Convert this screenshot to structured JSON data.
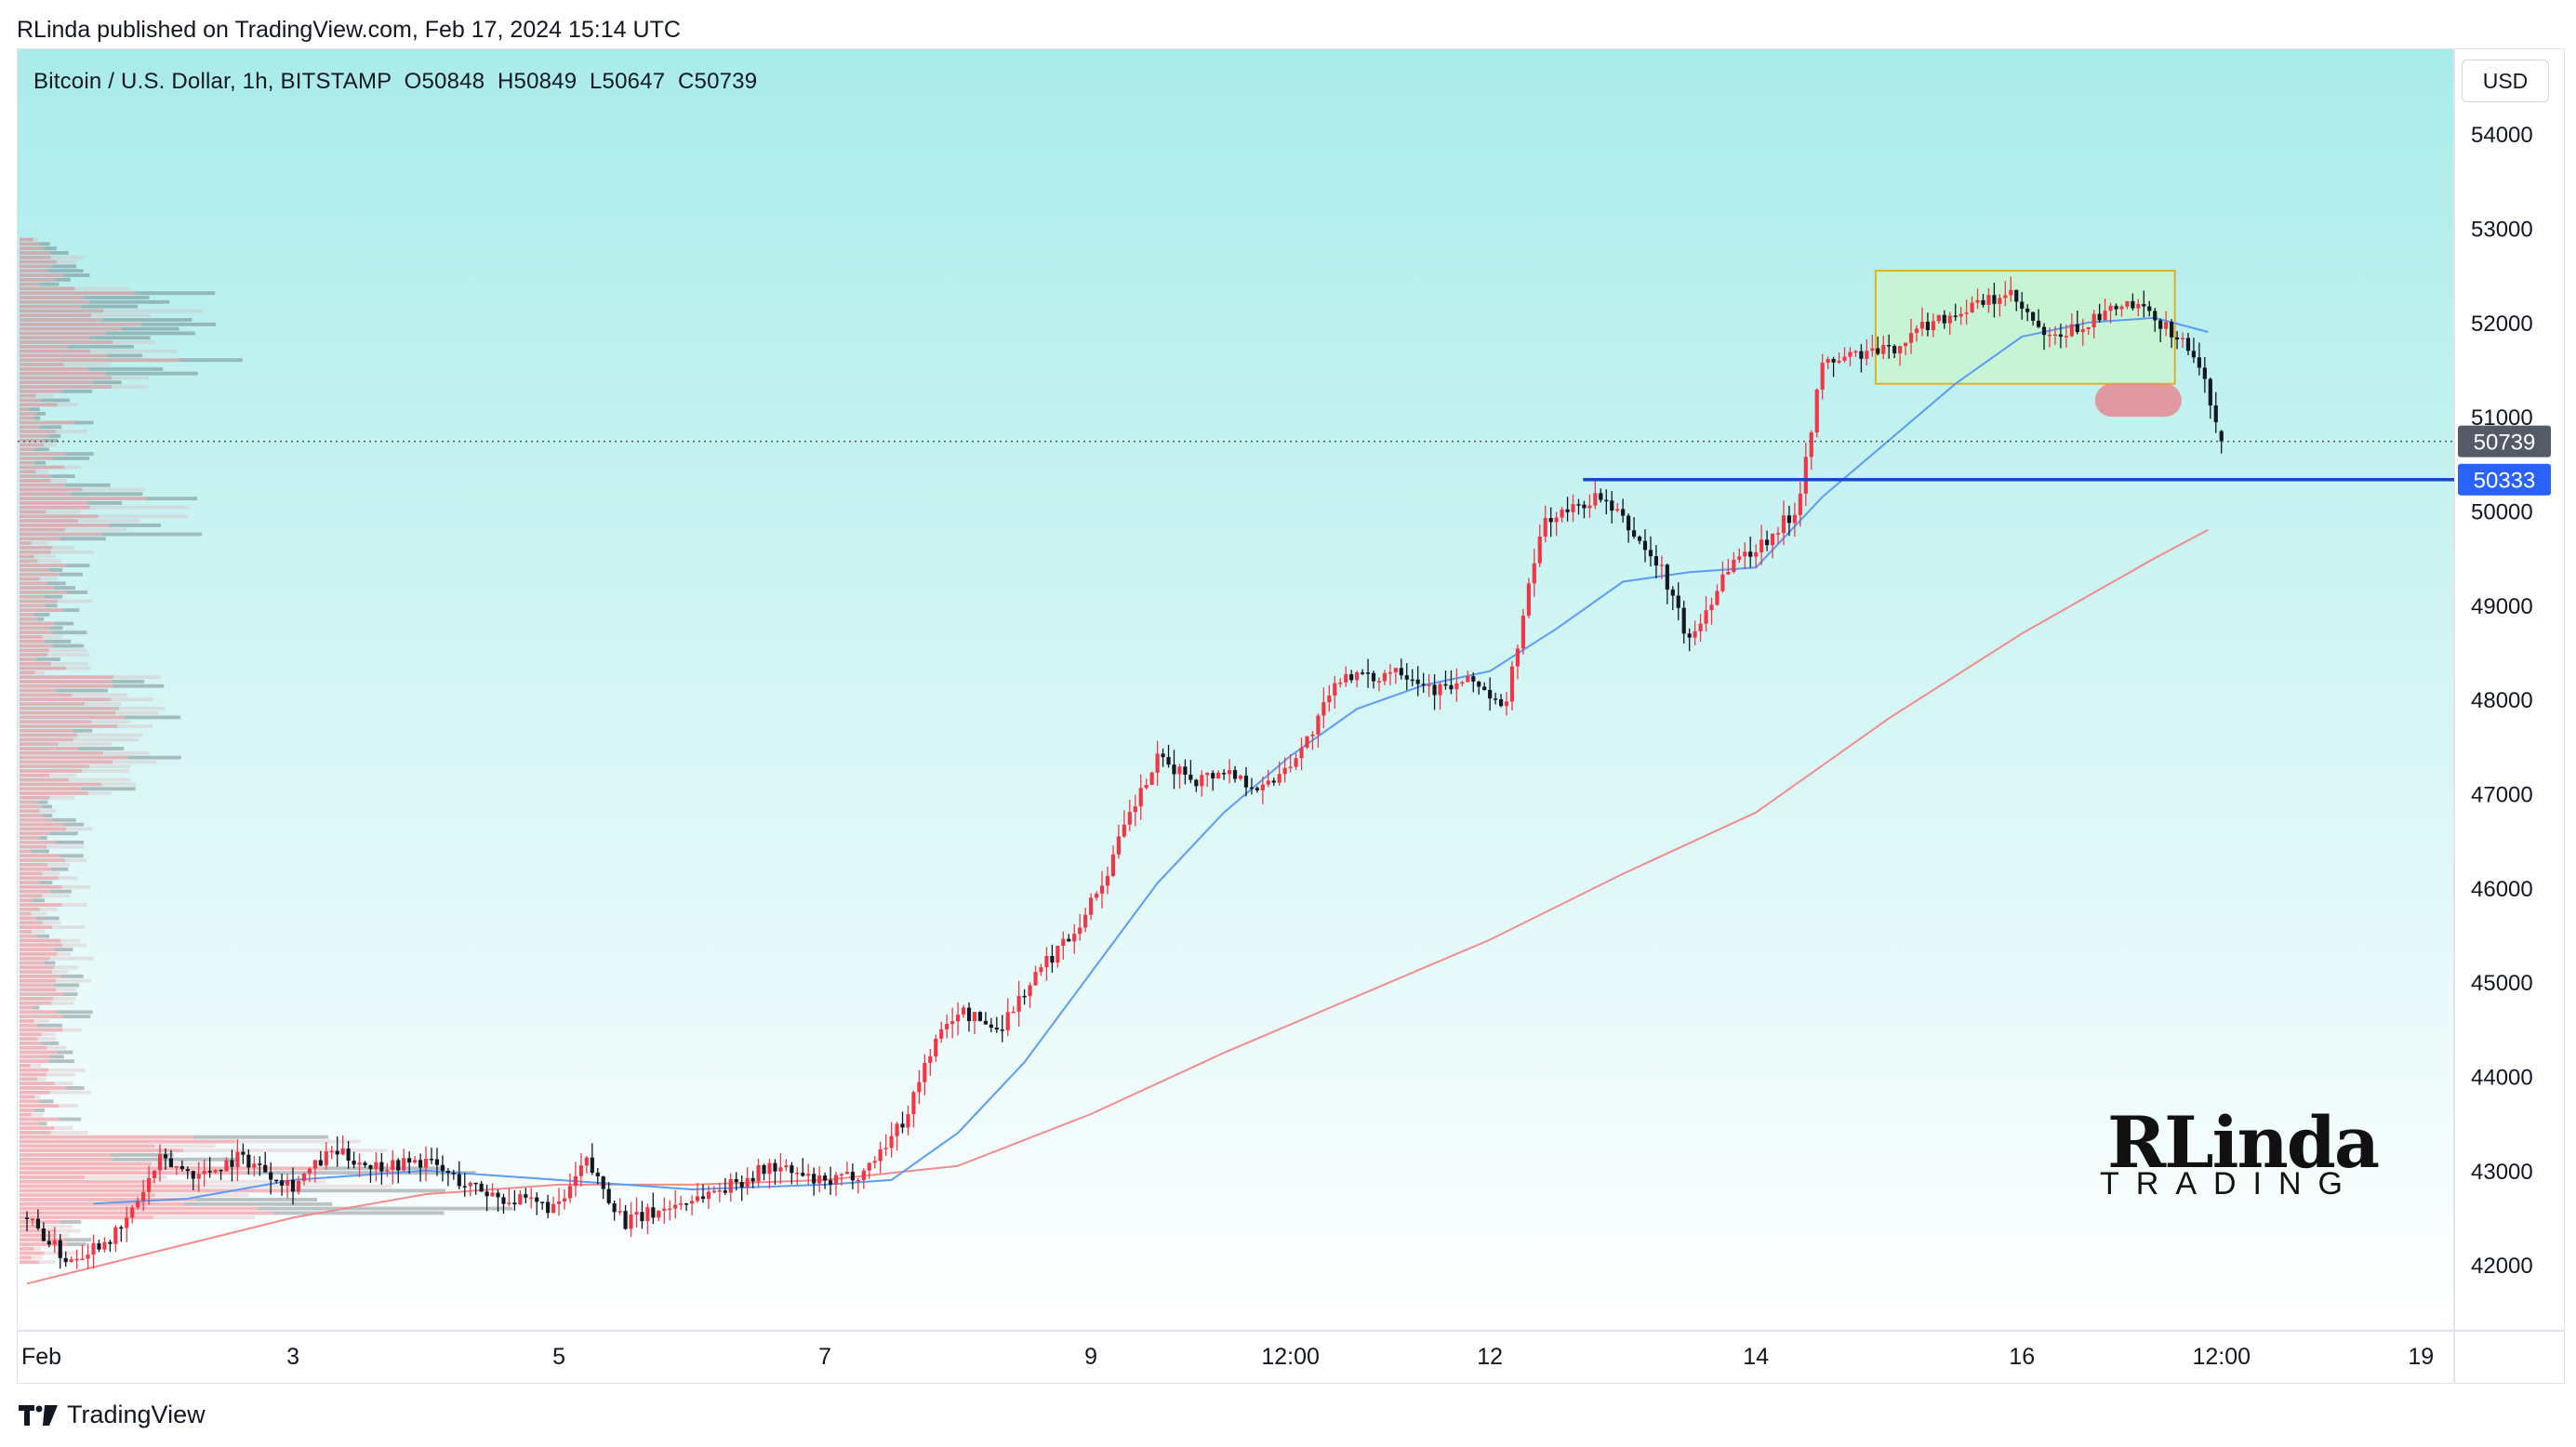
{
  "header": {
    "published_line": "RLinda published on TradingView.com, Feb 17, 2024 15:14 UTC",
    "symbol_line": "Bitcoin / U.S. Dollar, 1h, BITSTAMP  O50848  H50849  L50647  C50739",
    "currency": "USD"
  },
  "footer": {
    "brand": "TradingView"
  },
  "watermark": {
    "line1": "RLinda",
    "line2": "TRADING"
  },
  "colors": {
    "bull": "#f23645",
    "bear": "#131722",
    "ma_fast": "#5b9cf6",
    "ma_slow": "#f08c8c",
    "level": "#1848cc",
    "zone_fill": "#c8f5cf",
    "zone_border": "#e0b020",
    "red_zone": "#e58a92",
    "bg_top": "#a9ecea",
    "bg_bottom": "#ffffff"
  },
  "chart_data": {
    "type": "candlestick",
    "title": "Bitcoin / U.S. Dollar, 1h, BITSTAMP",
    "ohlc_last": {
      "open": 50848,
      "high": 50849,
      "low": 50647,
      "close": 50739
    },
    "ylim": [
      41300,
      54900
    ],
    "y_ticks": [
      42000,
      43000,
      44000,
      45000,
      46000,
      47000,
      48000,
      49000,
      50000,
      51000,
      52000,
      53000,
      54000
    ],
    "x_ticks": [
      "Feb",
      "3",
      "5",
      "7",
      "9",
      "12:00",
      "12",
      "14",
      "16",
      "12:00",
      "19"
    ],
    "x_range_days": [
      1,
      19.25
    ],
    "price_path_days": [
      1.0,
      1.3,
      1.7,
      2.0,
      2.3,
      2.6,
      3.0,
      3.3,
      3.6,
      4.0,
      4.3,
      4.6,
      5.0,
      5.2,
      5.5,
      5.7,
      6.0,
      6.3,
      6.6,
      7.0,
      7.3,
      7.6,
      7.8,
      8.0,
      8.3,
      8.6,
      8.9,
      9.1,
      9.3,
      9.5,
      9.8,
      10.0,
      10.3,
      10.6,
      10.9,
      11.1,
      11.3,
      11.6,
      11.9,
      12.1,
      12.4,
      12.6,
      12.8,
      13.0,
      13.3,
      13.5,
      13.8,
      14.0,
      14.3,
      14.5,
      14.7,
      15.0,
      15.3,
      15.6,
      15.9,
      16.2,
      16.5,
      16.8,
      17.1,
      17.3,
      17.5
    ],
    "price_path_values": [
      42500,
      42050,
      42350,
      43100,
      42950,
      43150,
      42850,
      43200,
      43050,
      43100,
      42850,
      42700,
      42600,
      43100,
      42450,
      42550,
      42700,
      42850,
      43050,
      42850,
      43000,
      43550,
      44300,
      44700,
      44500,
      45100,
      45600,
      46100,
      46800,
      47350,
      47150,
      47250,
      47050,
      47500,
      48300,
      48200,
      48350,
      48100,
      48200,
      47850,
      49900,
      50000,
      50150,
      49900,
      49350,
      48600,
      49450,
      49600,
      50000,
      51550,
      51650,
      51700,
      52000,
      52150,
      52300,
      51800,
      52000,
      52200,
      51950,
      51650,
      50800
    ],
    "ma_fast": {
      "x_days": [
        1.5,
        2.2,
        3.0,
        4.0,
        5.0,
        6.0,
        7.0,
        7.5,
        8.0,
        8.5,
        9.0,
        9.5,
        10.0,
        10.5,
        11.0,
        11.5,
        12.0,
        12.5,
        13.0,
        13.5,
        14.0,
        14.5,
        15.0,
        15.5,
        16.0,
        16.5,
        17.0,
        17.4
      ],
      "values": [
        42650,
        42700,
        42900,
        43000,
        42900,
        42800,
        42850,
        42900,
        43400,
        44150,
        45100,
        46050,
        46800,
        47400,
        47900,
        48150,
        48300,
        48750,
        49250,
        49350,
        49400,
        50150,
        50750,
        51350,
        51850,
        52000,
        52050,
        51900
      ]
    },
    "ma_slow": {
      "x_days": [
        1.0,
        2.0,
        3.0,
        4.0,
        5.0,
        6.0,
        7.0,
        8.0,
        9.0,
        10.0,
        11.0,
        12.0,
        13.0,
        14.0,
        15.0,
        16.0,
        17.0,
        17.4
      ],
      "values": [
        41800,
        42150,
        42500,
        42750,
        42850,
        42850,
        42900,
        43050,
        43600,
        44250,
        44850,
        45450,
        46150,
        46800,
        47800,
        48700,
        49500,
        49800
      ]
    },
    "levels": [
      {
        "name": "",
        "value": 50333,
        "from_day": 12.7,
        "label": "50333"
      },
      {
        "name": "",
        "value": 50739,
        "style": "dotted",
        "label": "50739"
      }
    ],
    "zones": [
      {
        "type": "range-box",
        "x_from_day": 14.9,
        "x_to_day": 17.15,
        "y_from": 51350,
        "y_to": 52550
      },
      {
        "type": "target",
        "x_from_day": 16.55,
        "x_to_day": 17.2,
        "y_from": 51000,
        "y_to": 51350
      }
    ],
    "volume_profile": "left-side horizontal histogram",
    "grid": false
  }
}
